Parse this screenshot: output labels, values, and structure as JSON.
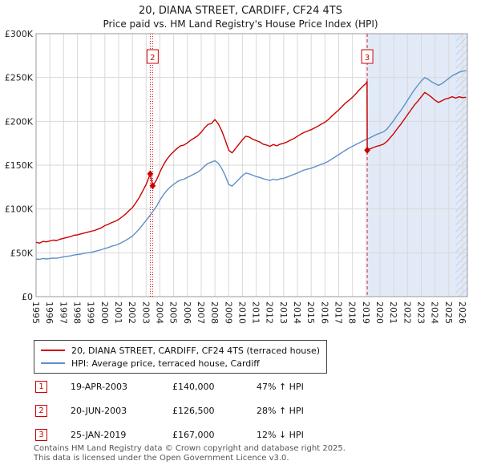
{
  "title": "20, DIANA STREET, CARDIFF, CF24 4TS",
  "subtitle": "Price paid vs. HM Land Registry's House Price Index (HPI)",
  "chart_data": {
    "type": "line",
    "x_range": [
      1995,
      2026.35
    ],
    "ylim": [
      0,
      300000
    ],
    "y_ticks": [
      "£0",
      "£50K",
      "£100K",
      "£150K",
      "£200K",
      "£250K",
      "£300K"
    ],
    "y_tick_values": [
      0,
      50000,
      100000,
      150000,
      200000,
      250000,
      300000
    ],
    "x_ticks": [
      1995,
      1996,
      1997,
      1998,
      1999,
      2000,
      2001,
      2002,
      2003,
      2004,
      2005,
      2006,
      2007,
      2008,
      2009,
      2010,
      2011,
      2012,
      2013,
      2014,
      2015,
      2016,
      2017,
      2018,
      2019,
      2020,
      2021,
      2022,
      2023,
      2024,
      2025,
      2026
    ],
    "grid": true,
    "legend_position": "bottom",
    "shaded_region": {
      "start": 2019.07,
      "end": 2026.35,
      "color": "#e2eaf7"
    },
    "hatch_region": {
      "start": 2025.5,
      "end": 2026.35,
      "color": "#b9c9e6"
    },
    "vlines": [
      {
        "x": 2003.3,
        "color": "#cc0000",
        "dash": "1,2"
      },
      {
        "x": 2003.47,
        "color": "#cc0000",
        "dash": "1,2"
      },
      {
        "x": 2019.07,
        "color": "#cc3355",
        "dash": "4,3"
      }
    ],
    "annotations": [
      {
        "label": "2",
        "x": 2003.47
      },
      {
        "label": "3",
        "x": 2019.07
      }
    ],
    "sale_points": [
      {
        "x": 2003.3,
        "y": 140000
      },
      {
        "x": 2003.47,
        "y": 126500
      },
      {
        "x": 2019.07,
        "y": 167000
      }
    ],
    "series": [
      {
        "name": "20, DIANA STREET, CARDIFF, CF24 4TS (terraced house)",
        "color": "#cc0000",
        "points": [
          [
            1995.0,
            62000
          ],
          [
            1995.25,
            61000
          ],
          [
            1995.5,
            63000
          ],
          [
            1995.75,
            62500
          ],
          [
            1996.0,
            63500
          ],
          [
            1996.25,
            64500
          ],
          [
            1996.5,
            64000
          ],
          [
            1996.75,
            65500
          ],
          [
            1997.0,
            66500
          ],
          [
            1997.25,
            67500
          ],
          [
            1997.5,
            68500
          ],
          [
            1997.75,
            70000
          ],
          [
            1998.0,
            70500
          ],
          [
            1998.25,
            71500
          ],
          [
            1998.5,
            72500
          ],
          [
            1998.75,
            73500
          ],
          [
            1999.0,
            74500
          ],
          [
            1999.25,
            75500
          ],
          [
            1999.5,
            77000
          ],
          [
            1999.75,
            78500
          ],
          [
            2000.0,
            81000
          ],
          [
            2000.25,
            82500
          ],
          [
            2000.5,
            84500
          ],
          [
            2000.75,
            86000
          ],
          [
            2001.0,
            88000
          ],
          [
            2001.25,
            91000
          ],
          [
            2001.5,
            94000
          ],
          [
            2001.75,
            98000
          ],
          [
            2002.0,
            101500
          ],
          [
            2002.25,
            107000
          ],
          [
            2002.5,
            113000
          ],
          [
            2002.75,
            120500
          ],
          [
            2003.0,
            128000
          ],
          [
            2003.3,
            140000
          ],
          [
            2003.47,
            126500
          ],
          [
            2003.75,
            133000
          ],
          [
            2004.0,
            142000
          ],
          [
            2004.25,
            150000
          ],
          [
            2004.5,
            156500
          ],
          [
            2004.75,
            161500
          ],
          [
            2005.0,
            165500
          ],
          [
            2005.25,
            169000
          ],
          [
            2005.5,
            172000
          ],
          [
            2005.75,
            173000
          ],
          [
            2006.0,
            175500
          ],
          [
            2006.25,
            178500
          ],
          [
            2006.5,
            181000
          ],
          [
            2006.75,
            183500
          ],
          [
            2007.0,
            187500
          ],
          [
            2007.25,
            192500
          ],
          [
            2007.5,
            196500
          ],
          [
            2007.75,
            197500
          ],
          [
            2008.0,
            202000
          ],
          [
            2008.25,
            197000
          ],
          [
            2008.5,
            189000
          ],
          [
            2008.75,
            178500
          ],
          [
            2009.0,
            167000
          ],
          [
            2009.25,
            164000
          ],
          [
            2009.5,
            169000
          ],
          [
            2009.75,
            174000
          ],
          [
            2010.0,
            179000
          ],
          [
            2010.25,
            183000
          ],
          [
            2010.5,
            182000
          ],
          [
            2010.75,
            179500
          ],
          [
            2011.0,
            178000
          ],
          [
            2011.25,
            176500
          ],
          [
            2011.5,
            174000
          ],
          [
            2011.75,
            173000
          ],
          [
            2012.0,
            171500
          ],
          [
            2012.25,
            173500
          ],
          [
            2012.5,
            172000
          ],
          [
            2012.75,
            174000
          ],
          [
            2013.0,
            175000
          ],
          [
            2013.25,
            176500
          ],
          [
            2013.5,
            178500
          ],
          [
            2013.75,
            180500
          ],
          [
            2014.0,
            183000
          ],
          [
            2014.25,
            185500
          ],
          [
            2014.5,
            187500
          ],
          [
            2014.75,
            189000
          ],
          [
            2015.0,
            190500
          ],
          [
            2015.25,
            192500
          ],
          [
            2015.5,
            194500
          ],
          [
            2015.75,
            197000
          ],
          [
            2016.0,
            199000
          ],
          [
            2016.25,
            202000
          ],
          [
            2016.5,
            206000
          ],
          [
            2016.75,
            209500
          ],
          [
            2017.0,
            213000
          ],
          [
            2017.25,
            217000
          ],
          [
            2017.5,
            221000
          ],
          [
            2017.75,
            224000
          ],
          [
            2018.0,
            227500
          ],
          [
            2018.25,
            231500
          ],
          [
            2018.5,
            236000
          ],
          [
            2018.75,
            240000
          ],
          [
            2019.0,
            243500
          ],
          [
            2019.06,
            245500
          ],
          [
            2019.07,
            167000
          ],
          [
            2019.25,
            168500
          ],
          [
            2019.5,
            170000
          ],
          [
            2019.75,
            171500
          ],
          [
            2020.0,
            172500
          ],
          [
            2020.25,
            174000
          ],
          [
            2020.5,
            177000
          ],
          [
            2020.75,
            181500
          ],
          [
            2021.0,
            186000
          ],
          [
            2021.25,
            191500
          ],
          [
            2021.5,
            196500
          ],
          [
            2021.75,
            202000
          ],
          [
            2022.0,
            207500
          ],
          [
            2022.25,
            213000
          ],
          [
            2022.5,
            218500
          ],
          [
            2022.75,
            223000
          ],
          [
            2023.0,
            228000
          ],
          [
            2023.25,
            233000
          ],
          [
            2023.5,
            230500
          ],
          [
            2023.75,
            227500
          ],
          [
            2024.0,
            224000
          ],
          [
            2024.25,
            221500
          ],
          [
            2024.5,
            223500
          ],
          [
            2024.75,
            225500
          ],
          [
            2025.0,
            226500
          ],
          [
            2025.25,
            228000
          ],
          [
            2025.5,
            226500
          ],
          [
            2025.75,
            228000
          ],
          [
            2026.0,
            227000
          ],
          [
            2026.25,
            227500
          ]
        ]
      },
      {
        "name": "HPI: Average price, terraced house, Cardiff",
        "color": "#5f8fc7",
        "points": [
          [
            1995.0,
            43000
          ],
          [
            1995.25,
            42500
          ],
          [
            1995.5,
            43500
          ],
          [
            1995.75,
            43000
          ],
          [
            1996.0,
            43500
          ],
          [
            1996.25,
            44000
          ],
          [
            1996.5,
            43800
          ],
          [
            1996.75,
            44500
          ],
          [
            1997.0,
            45500
          ],
          [
            1997.25,
            46000
          ],
          [
            1997.5,
            46500
          ],
          [
            1997.75,
            47500
          ],
          [
            1998.0,
            48000
          ],
          [
            1998.25,
            48500
          ],
          [
            1998.5,
            49500
          ],
          [
            1998.75,
            50000
          ],
          [
            1999.0,
            50500
          ],
          [
            1999.25,
            51500
          ],
          [
            1999.5,
            52500
          ],
          [
            1999.75,
            53500
          ],
          [
            2000.0,
            55000
          ],
          [
            2000.25,
            56000
          ],
          [
            2000.5,
            57500
          ],
          [
            2000.75,
            58500
          ],
          [
            2001.0,
            60000
          ],
          [
            2001.25,
            62000
          ],
          [
            2001.5,
            64000
          ],
          [
            2001.75,
            66500
          ],
          [
            2002.0,
            69000
          ],
          [
            2002.25,
            73000
          ],
          [
            2002.5,
            77000
          ],
          [
            2002.75,
            82000
          ],
          [
            2003.0,
            87000
          ],
          [
            2003.25,
            92000
          ],
          [
            2003.5,
            97500
          ],
          [
            2003.75,
            103000
          ],
          [
            2004.0,
            110000
          ],
          [
            2004.25,
            116000
          ],
          [
            2004.5,
            121000
          ],
          [
            2004.75,
            125000
          ],
          [
            2005.0,
            128000
          ],
          [
            2005.25,
            131000
          ],
          [
            2005.5,
            133000
          ],
          [
            2005.75,
            134000
          ],
          [
            2006.0,
            136000
          ],
          [
            2006.25,
            138000
          ],
          [
            2006.5,
            140000
          ],
          [
            2006.75,
            142000
          ],
          [
            2007.0,
            145000
          ],
          [
            2007.25,
            149000
          ],
          [
            2007.5,
            152000
          ],
          [
            2007.75,
            153500
          ],
          [
            2008.0,
            155000
          ],
          [
            2008.25,
            152000
          ],
          [
            2008.5,
            146000
          ],
          [
            2008.75,
            138000
          ],
          [
            2009.0,
            128000
          ],
          [
            2009.25,
            126000
          ],
          [
            2009.5,
            130000
          ],
          [
            2009.75,
            134000
          ],
          [
            2010.0,
            138000
          ],
          [
            2010.25,
            141000
          ],
          [
            2010.5,
            140000
          ],
          [
            2010.75,
            138500
          ],
          [
            2011.0,
            137000
          ],
          [
            2011.25,
            136000
          ],
          [
            2011.5,
            134500
          ],
          [
            2011.75,
            133500
          ],
          [
            2012.0,
            132500
          ],
          [
            2012.25,
            134000
          ],
          [
            2012.5,
            133000
          ],
          [
            2012.75,
            134500
          ],
          [
            2013.0,
            135000
          ],
          [
            2013.25,
            136500
          ],
          [
            2013.5,
            138000
          ],
          [
            2013.75,
            139500
          ],
          [
            2014.0,
            141000
          ],
          [
            2014.25,
            143000
          ],
          [
            2014.5,
            144500
          ],
          [
            2014.75,
            145500
          ],
          [
            2015.0,
            146500
          ],
          [
            2015.25,
            148000
          ],
          [
            2015.5,
            149500
          ],
          [
            2015.75,
            151000
          ],
          [
            2016.0,
            152500
          ],
          [
            2016.25,
            154500
          ],
          [
            2016.5,
            157000
          ],
          [
            2016.75,
            159500
          ],
          [
            2017.0,
            162000
          ],
          [
            2017.25,
            164500
          ],
          [
            2017.5,
            167000
          ],
          [
            2017.75,
            169500
          ],
          [
            2018.0,
            171500
          ],
          [
            2018.25,
            173500
          ],
          [
            2018.5,
            175500
          ],
          [
            2018.75,
            177500
          ],
          [
            2019.0,
            179500
          ],
          [
            2019.25,
            181000
          ],
          [
            2019.5,
            183000
          ],
          [
            2019.75,
            185000
          ],
          [
            2020.0,
            186500
          ],
          [
            2020.25,
            188000
          ],
          [
            2020.5,
            191000
          ],
          [
            2020.75,
            196000
          ],
          [
            2021.0,
            201000
          ],
          [
            2021.25,
            207000
          ],
          [
            2021.5,
            212000
          ],
          [
            2021.75,
            218000
          ],
          [
            2022.0,
            224000
          ],
          [
            2022.25,
            230000
          ],
          [
            2022.5,
            236000
          ],
          [
            2022.75,
            241000
          ],
          [
            2023.0,
            246000
          ],
          [
            2023.25,
            250000
          ],
          [
            2023.5,
            248000
          ],
          [
            2023.75,
            245000
          ],
          [
            2024.0,
            243000
          ],
          [
            2024.25,
            241000
          ],
          [
            2024.5,
            243000
          ],
          [
            2024.75,
            246000
          ],
          [
            2025.0,
            249000
          ],
          [
            2025.25,
            252000
          ],
          [
            2025.5,
            254000
          ],
          [
            2025.75,
            256000
          ],
          [
            2026.0,
            257000
          ],
          [
            2026.25,
            258000
          ]
        ]
      }
    ]
  },
  "legend": {
    "items": [
      {
        "label": "20, DIANA STREET, CARDIFF, CF24 4TS (terraced house)"
      },
      {
        "label": "HPI: Average price, terraced house, Cardiff"
      }
    ]
  },
  "sales_table": {
    "rows": [
      {
        "num": "1",
        "date": "19-APR-2003",
        "price": "£140,000",
        "hpi": "47% ↑ HPI"
      },
      {
        "num": "2",
        "date": "20-JUN-2003",
        "price": "£126,500",
        "hpi": "28% ↑ HPI"
      },
      {
        "num": "3",
        "date": "25-JAN-2019",
        "price": "£167,000",
        "hpi": "12% ↓ HPI"
      }
    ]
  },
  "footer": {
    "line1": "Contains HM Land Registry data © Crown copyright and database right 2025.",
    "line2": "This data is licensed under the Open Government Licence v3.0."
  }
}
